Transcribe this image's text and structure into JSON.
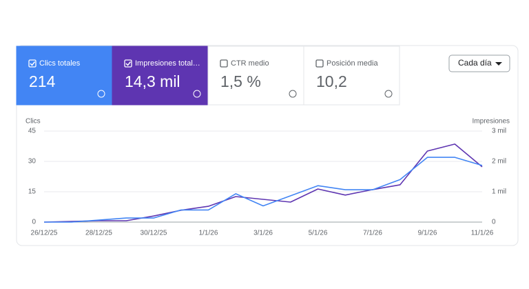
{
  "metrics": [
    {
      "label": "Clics totales",
      "value": "214",
      "checked": true,
      "color": "#4285f4"
    },
    {
      "label": "Impresiones total…",
      "value": "14,3 mil",
      "checked": true,
      "color": "#5e35b1"
    },
    {
      "label": "CTR medio",
      "value": "1,5 %",
      "checked": false,
      "color": "#ffffff"
    },
    {
      "label": "Posición media",
      "value": "10,2",
      "checked": false,
      "color": "#ffffff"
    }
  ],
  "dropdown": "Cada día",
  "chart_data": {
    "type": "line",
    "categories": [
      "26/12/25",
      null,
      "28/12/25",
      null,
      "30/12/25",
      null,
      "1/1/26",
      null,
      "3/1/26",
      null,
      "5/1/26",
      null,
      "7/1/26",
      null,
      "9/1/26",
      null,
      "11/1/26"
    ],
    "series": [
      {
        "name": "Clics",
        "color": "#4285f4",
        "axis": "y",
        "values": [
          0,
          0,
          1,
          2,
          2,
          6,
          6,
          14,
          8,
          13,
          18,
          16,
          16,
          21,
          32,
          32,
          28
        ]
      },
      {
        "name": "Impresiones",
        "color": "#5e35b1",
        "axis": "y2",
        "values": [
          0,
          20,
          45,
          45,
          200,
          390,
          520,
          840,
          750,
          660,
          1090,
          890,
          1070,
          1230,
          2340,
          2570,
          1820
        ]
      }
    ],
    "ylim": [
      0,
      45
    ],
    "yticks": [
      0,
      15,
      30,
      45
    ],
    "y2lim": [
      0,
      3000
    ],
    "y2ticks": [
      0,
      {
        "value": 1000,
        "label": "1 mil"
      },
      {
        "value": 2000,
        "label": "2 mil"
      },
      {
        "value": 3000,
        "label": "3 mil"
      }
    ],
    "grid": true
  }
}
